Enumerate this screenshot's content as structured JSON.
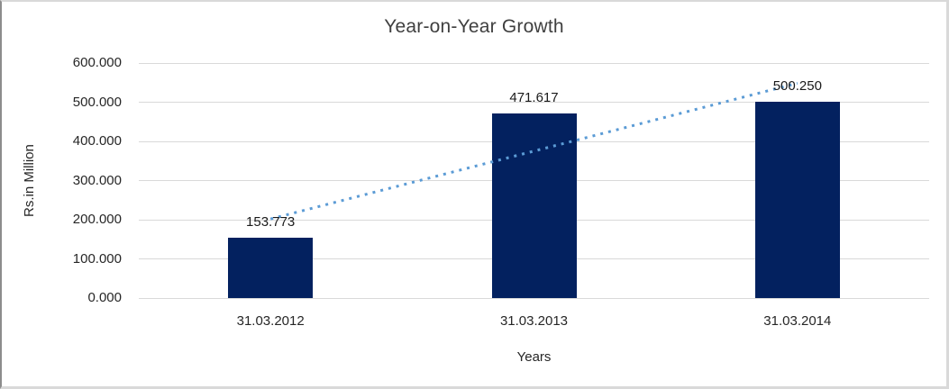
{
  "chart_data": {
    "type": "bar",
    "title": "Year-on-Year Growth",
    "categories": [
      "31.03.2012",
      "31.03.2013",
      "31.03.2014"
    ],
    "values": [
      153.773,
      471.617,
      500.25
    ],
    "data_labels": [
      "153.773",
      "471.617",
      "500.250"
    ],
    "xlabel": "Years",
    "ylabel": "Rs.in Million",
    "ylim": [
      0,
      600
    ],
    "ytick_step": 100,
    "ytick_labels": [
      "0.000",
      "100.000",
      "200.000",
      "300.000",
      "400.000",
      "500.000",
      "600.000"
    ],
    "grid": true,
    "legend": "none",
    "trendline": {
      "type": "linear",
      "style": "dotted",
      "color": "#5b9bd5"
    },
    "colors": {
      "bar": "#03215f",
      "grid": "#d9d9d9",
      "text": "#262626",
      "frame_border": "#d9d9d9"
    }
  }
}
